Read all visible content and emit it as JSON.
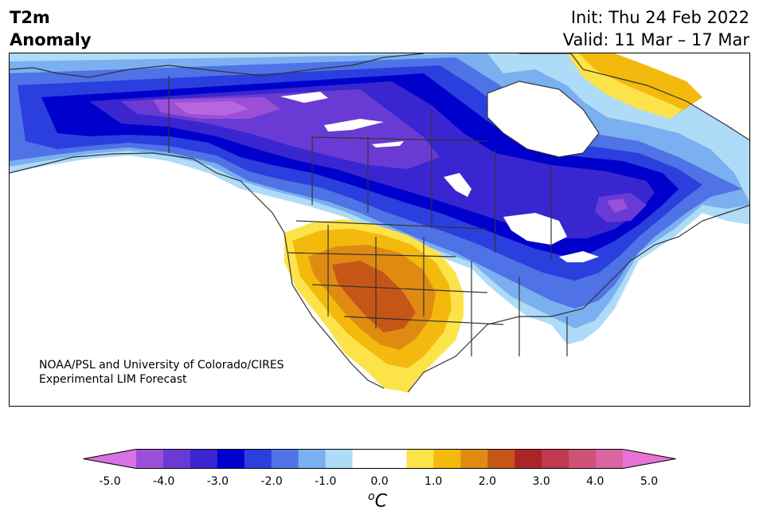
{
  "title": {
    "variable": "T2m",
    "kind": "Anomaly",
    "init": "Init: Thu 24 Feb 2022",
    "valid": "Valid: 11 Mar – 17 Mar"
  },
  "credit": {
    "line1": "NOAA/PSL and University of Colorado/CIRES",
    "line2": "Experimental LIM Forecast"
  },
  "colorbar": {
    "unit_base": "C",
    "unit_superscript": "o",
    "ticks": [
      "-5.0",
      "-4.0",
      "-3.0",
      "-2.0",
      "-1.0",
      "0.0",
      "1.0",
      "2.0",
      "3.0",
      "4.0",
      "5.0"
    ],
    "colors": [
      "#d972e3",
      "#9b4fd7",
      "#6a3bd4",
      "#3a26d0",
      "#0000cc",
      "#2a3fdd",
      "#4f72e6",
      "#7ab0f0",
      "#aedbf7",
      "#ffffff",
      "#ffffff",
      "#fde34a",
      "#f3b90d",
      "#df8b12",
      "#c65518",
      "#ac2328",
      "#c0394e",
      "#cf5377",
      "#d966a3",
      "#e873d4"
    ]
  },
  "map_colors": {
    "ocean": "#ffffff",
    "land": "#ffffff",
    "coast": "#333333",
    "cold_1": "#aedbf7",
    "cold_2": "#7ab0f0",
    "cold_3": "#4f72e6",
    "cold_4": "#2a3fdd",
    "cold_5": "#0000cc",
    "cold_6": "#3a26d0",
    "cold_7": "#6a3bd4",
    "cold_8": "#9b4fd7",
    "cold_9": "#b766e0",
    "warm_1": "#fde34a",
    "warm_2": "#f3b90d",
    "warm_3": "#df8b12",
    "warm_4": "#c65518"
  }
}
